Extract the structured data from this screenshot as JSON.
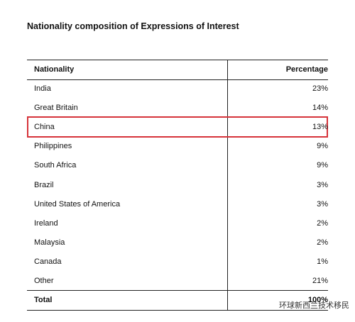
{
  "title": "Nationality composition of Expressions of Interest",
  "table": {
    "header": [
      "Nationality",
      "Percentage"
    ],
    "rows": [
      [
        "India",
        "23%"
      ],
      [
        "Great Britain",
        "14%"
      ],
      [
        "China",
        "13%"
      ],
      [
        "Philippines",
        "9%"
      ],
      [
        "South Africa",
        "9%"
      ],
      [
        "Brazil",
        "3%"
      ],
      [
        "United States of America",
        "3%"
      ],
      [
        "Ireland",
        "2%"
      ],
      [
        "Malaysia",
        "2%"
      ],
      [
        "Canada",
        "1%"
      ],
      [
        "Other",
        "21%"
      ]
    ],
    "total": [
      "Total",
      "100%"
    ]
  },
  "caption": "环球新西兰技术移民"
}
